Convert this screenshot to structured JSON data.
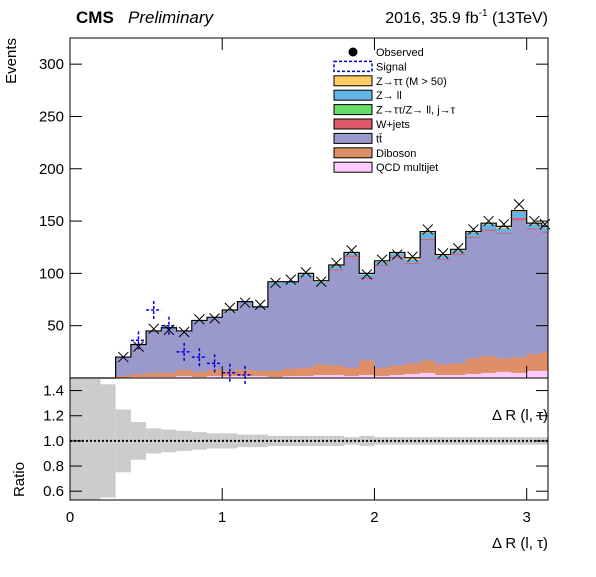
{
  "chart_data": {
    "type": "histogram",
    "experiment": "CMS",
    "status": "Preliminary",
    "lumi": "2016, 35.9 fb",
    "lumi_sup": "-1",
    "lumi_tail": " (13TeV)",
    "ylabel": "Events",
    "ratio_ylabel": "Ratio",
    "xlabel": "Δ R (l, τ)",
    "ratio_annotation": "Δ R (l, τ)",
    "bins": [
      0,
      0.1,
      0.2,
      0.3,
      0.4,
      0.5,
      0.6,
      0.7,
      0.8,
      0.9,
      1.0,
      1.1,
      1.2,
      1.3,
      1.4,
      1.5,
      1.6,
      1.7,
      1.8,
      1.9,
      2.0,
      2.1,
      2.2,
      2.3,
      2.4,
      2.5,
      2.6,
      2.7,
      2.8,
      2.9,
      3.0,
      3.1,
      3.14
    ],
    "xlim": [
      0,
      3.14
    ],
    "xticks": [
      0,
      1,
      2,
      3
    ],
    "ylim": [
      0,
      325
    ],
    "yticks": [
      50,
      100,
      150,
      200,
      250,
      300
    ],
    "ratio_ylim": [
      0.53,
      1.5
    ],
    "ratio_yticks": [
      0.6,
      0.8,
      {
        "value": 1,
        "label": "1.0"
      },
      1.2,
      1.4
    ],
    "ratio_band": [
      1,
      1,
      0.45,
      0.25,
      0.15,
      0.1,
      0.09,
      0.08,
      0.07,
      0.06,
      0.06,
      0.05,
      0.05,
      0.04,
      0.04,
      0.04,
      0.04,
      0.04,
      0.03,
      0.04,
      0.03,
      0.03,
      0.03,
      0.03,
      0.03,
      0.03,
      0.03,
      0.03,
      0.03,
      0.03,
      0.03,
      0.03
    ],
    "observed": {
      "name": "Observed",
      "color": "#000000",
      "values": [
        null,
        null,
        null,
        20,
        30,
        47,
        46,
        44,
        56,
        57,
        67,
        72,
        70,
        91,
        94,
        101,
        92,
        110,
        122,
        99,
        113,
        118,
        116,
        142,
        119,
        124,
        142,
        150,
        147,
        166,
        150,
        147
      ]
    },
    "signal": {
      "name": "Signal",
      "color": "#0000dd",
      "values": [
        null,
        null,
        null,
        null,
        36,
        65,
        50,
        25,
        20,
        14,
        5,
        3,
        null,
        null,
        null,
        null,
        null,
        null,
        null,
        null,
        null,
        null,
        null,
        null,
        null,
        null,
        null,
        null,
        null,
        null,
        null,
        null
      ]
    },
    "series": [
      {
        "name": "QCD multijet",
        "color": "#ffccff",
        "values": [
          0,
          0,
          0,
          0,
          1,
          1,
          1,
          2,
          1,
          2,
          2,
          2,
          2,
          1,
          2,
          2,
          3,
          3,
          2,
          3,
          2,
          3,
          4,
          5,
          3,
          3,
          4,
          5,
          6,
          5,
          7,
          7
        ]
      },
      {
        "name": "Diboson",
        "color": "#de8f68",
        "values": [
          0,
          0,
          0,
          2,
          3,
          4,
          4,
          6,
          5,
          6,
          5,
          6,
          5,
          6,
          7,
          8,
          10,
          9,
          8,
          14,
          8,
          9,
          10,
          12,
          10,
          11,
          15,
          16,
          13,
          15,
          16,
          18
        ]
      },
      {
        "name": "tt̄",
        "color": "#9999cc",
        "values": [
          0,
          0,
          0,
          18,
          28,
          40,
          42,
          37,
          48,
          49,
          56,
          64,
          60,
          82,
          81,
          87,
          77,
          91,
          106,
          78,
          97,
          103,
          95,
          115,
          100,
          104,
          115,
          120,
          119,
          131,
          119,
          114
        ]
      },
      {
        "name": "W+jets",
        "color": "#de5a6a",
        "values": [
          0,
          0,
          0,
          0,
          0,
          0,
          0,
          0,
          0,
          0,
          0,
          0,
          0,
          0,
          0,
          0,
          0,
          1,
          1,
          1,
          1,
          1,
          1,
          1,
          1,
          1,
          1,
          1,
          1,
          2,
          1,
          1
        ]
      },
      {
        "name": "Z→ττ/Z→ ll, j→τ",
        "color": "#66dd66",
        "values": [
          0,
          0,
          0,
          0,
          0,
          0,
          0,
          0,
          0,
          0,
          0,
          0,
          0,
          0,
          0,
          0,
          0,
          0,
          0,
          0,
          0,
          0,
          0,
          0,
          0,
          0,
          0,
          0,
          0,
          0,
          0,
          0
        ]
      },
      {
        "name": "Z→ ll",
        "color": "#64b4e6",
        "values": [
          0,
          0,
          0,
          0,
          0,
          0,
          1,
          0,
          1,
          1,
          1,
          1,
          1,
          2,
          2,
          2,
          2,
          3,
          2,
          3,
          3,
          3,
          3,
          6,
          3,
          3,
          4,
          5,
          4,
          6,
          4,
          4
        ]
      },
      {
        "name": "Z→ττ (M > 50)",
        "color": "#ffcc66",
        "values": [
          0,
          0,
          0,
          0,
          0,
          0,
          0,
          0,
          0,
          0,
          1,
          0,
          0,
          1,
          0,
          1,
          1,
          1,
          1,
          1,
          1,
          1,
          2,
          1,
          1,
          1,
          1,
          1,
          2,
          1,
          1,
          1
        ]
      }
    ]
  }
}
